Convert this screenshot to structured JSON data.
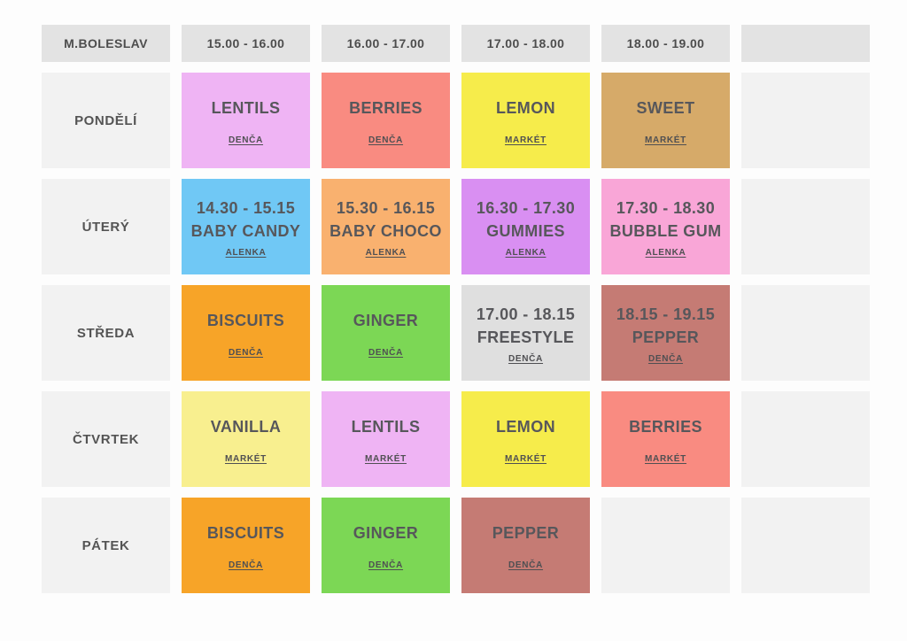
{
  "page": {
    "bg": "#fdfdfd"
  },
  "colors": {
    "header_bg": "#e3e3e3",
    "day_bg": "#f2f2f2",
    "empty_bg": "#f2f2f2",
    "text": "#57575b"
  },
  "table": {
    "corner_label": "M.BOLESLAV",
    "time_headers": [
      "15.00 - 16.00",
      "16.00 - 17.00",
      "17.00 - 18.00",
      "18.00 - 19.00",
      ""
    ],
    "rows": [
      {
        "day": "PONDĚLÍ",
        "cells": [
          {
            "time": "",
            "title": "LENTILS",
            "coach": "DENČA",
            "bg": "#efb4f4"
          },
          {
            "time": "",
            "title": "BERRIES",
            "coach": "DENČA",
            "bg": "#f98b81"
          },
          {
            "time": "",
            "title": "LEMON",
            "coach": "MARKÉT",
            "bg": "#f6ec4b"
          },
          {
            "time": "",
            "title": "SWEET",
            "coach": "MARKÉT",
            "bg": "#d6aa69"
          },
          null
        ]
      },
      {
        "day": "ÚTERÝ",
        "cells": [
          {
            "time": "14.30 - 15.15",
            "title": "BABY CANDY",
            "coach": "ALENKA",
            "bg": "#70c8f5"
          },
          {
            "time": "15.30 - 16.15",
            "title": "BABY CHOCO",
            "coach": "ALENKA",
            "bg": "#f9b16f"
          },
          {
            "time": "16.30 - 17.30",
            "title": "GUMMIES",
            "coach": "ALENKA",
            "bg": "#d98ff2"
          },
          {
            "time": "17.30 - 18.30",
            "title": "BUBBLE GUM",
            "coach": "ALENKA",
            "bg": "#f9a6d7"
          },
          null
        ]
      },
      {
        "day": "STŘEDA",
        "cells": [
          {
            "time": "",
            "title": "BISCUITS",
            "coach": "DENČA",
            "bg": "#f7a428"
          },
          {
            "time": "",
            "title": "GINGER",
            "coach": "DENČA",
            "bg": "#7cd755"
          },
          {
            "time": "17.00 - 18.15",
            "title": "FREESTYLE",
            "coach": "DENČA",
            "bg": "#dfdfdf"
          },
          {
            "time": "18.15 - 19.15",
            "title": "PEPPER",
            "coach": "DENČA",
            "bg": "#c57b74"
          },
          null
        ]
      },
      {
        "day": "ČTVRTEK",
        "cells": [
          {
            "time": "",
            "title": "VANILLA",
            "coach": "MARKÉT",
            "bg": "#f8ef8f"
          },
          {
            "time": "",
            "title": "LENTILS",
            "coach": "MARKÉT",
            "bg": "#efb4f4"
          },
          {
            "time": "",
            "title": "LEMON",
            "coach": "MARKÉT",
            "bg": "#f6ec4b"
          },
          {
            "time": "",
            "title": "BERRIES",
            "coach": "MARKÉT",
            "bg": "#f98b81"
          },
          null
        ]
      },
      {
        "day": "PÁTEK",
        "cells": [
          {
            "time": "",
            "title": "BISCUITS",
            "coach": "DENČA",
            "bg": "#f7a428"
          },
          {
            "time": "",
            "title": "GINGER",
            "coach": "DENČA",
            "bg": "#7cd755"
          },
          {
            "time": "",
            "title": "PEPPER",
            "coach": "DENČA",
            "bg": "#c57b74"
          },
          null,
          null
        ]
      }
    ]
  }
}
